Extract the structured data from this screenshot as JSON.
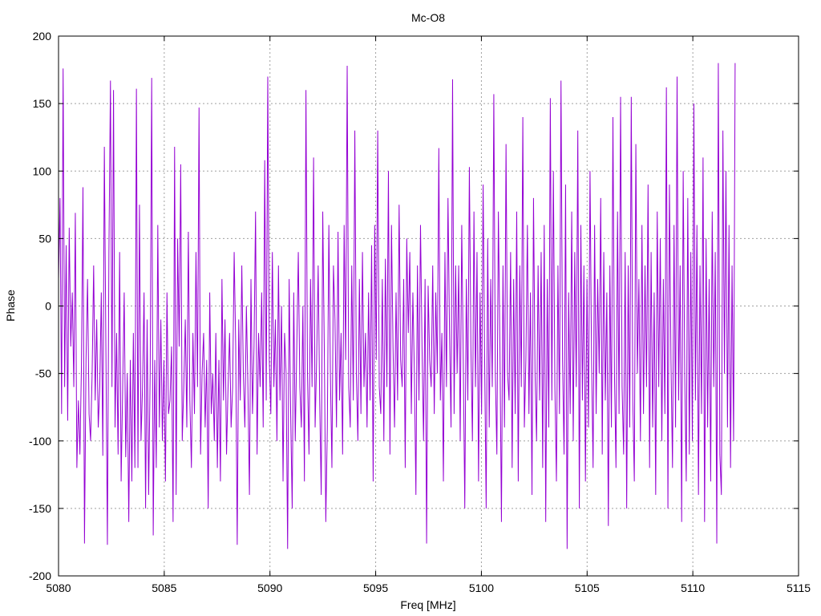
{
  "chart_data": {
    "type": "line",
    "title": "Mc-O8",
    "xlabel": "Freq [MHz]",
    "ylabel": "Phase",
    "xlim": [
      5080,
      5115
    ],
    "ylim": [
      -200,
      200
    ],
    "xticks": [
      5080,
      5085,
      5090,
      5095,
      5100,
      5105,
      5110,
      5115
    ],
    "yticks": [
      -200,
      -150,
      -100,
      -50,
      0,
      50,
      100,
      150,
      200
    ],
    "xtick_labels": [
      "5080",
      "5085",
      "5090",
      "5095",
      "5100",
      "5105",
      "5110",
      "5115"
    ],
    "ytick_labels": [
      "-200",
      "-150",
      "-100",
      "-50",
      "0",
      "50",
      "100",
      "150",
      "200"
    ],
    "grid": true,
    "legend": "none",
    "series": [
      {
        "color": "#9400d3",
        "x_start": 5080,
        "x_end": 5112,
        "y": [
          20,
          80,
          -80,
          176,
          -60,
          45,
          -85,
          58,
          -30,
          10,
          -60,
          69,
          -120,
          -70,
          -110,
          -45,
          88,
          -176,
          -40,
          20,
          -80,
          -100,
          -50,
          30,
          -70,
          -10,
          -90,
          -60,
          10,
          -111,
          118,
          -30,
          -177,
          40,
          167,
          -60,
          160,
          -90,
          -20,
          -110,
          40,
          -130,
          -60,
          10,
          -112,
          -50,
          -160,
          -40,
          -130,
          -20,
          -120,
          161,
          -120,
          75,
          -100,
          -60,
          10,
          -150,
          -10,
          -140,
          -50,
          169,
          -170,
          -40,
          -120,
          60,
          -90,
          -10,
          -100,
          -40,
          -130,
          10,
          -80,
          -70,
          -30,
          -160,
          118,
          -140,
          50,
          -30,
          105,
          -100,
          -60,
          -10,
          -90,
          55,
          -70,
          -120,
          -20,
          -80,
          40,
          -60,
          147,
          -110,
          -50,
          -20,
          -90,
          -40,
          -150,
          10,
          -80,
          -50,
          -100,
          -20,
          -120,
          -40,
          -130,
          20,
          -70,
          -10,
          -110,
          -60,
          -20,
          -90,
          -60,
          40,
          -30,
          -177,
          -10,
          -70,
          30,
          -50,
          -90,
          0,
          -60,
          -140,
          20,
          -80,
          -30,
          70,
          -110,
          -20,
          -60,
          10,
          -90,
          108,
          -70,
          170,
          -40,
          -80,
          40,
          -60,
          -10,
          -100,
          30,
          -70,
          0,
          -130,
          -20,
          -50,
          -180,
          20,
          -80,
          -150,
          10,
          -100,
          -30,
          40,
          -60,
          -90,
          0,
          -130,
          160,
          -50,
          -110,
          20,
          -60,
          110,
          -90,
          -40,
          30,
          -70,
          -140,
          70,
          -30,
          -160,
          -90,
          60,
          -50,
          -120,
          30,
          -10,
          -90,
          55,
          -70,
          -20,
          -110,
          60,
          -40,
          178,
          -60,
          -90,
          30,
          -70,
          130,
          -50,
          -100,
          20,
          -80,
          40,
          -60,
          -20,
          -90,
          10,
          -70,
          45,
          -130,
          60,
          -40,
          130,
          -60,
          -80,
          20,
          -100,
          35,
          -60,
          100,
          -110,
          60,
          -30,
          -90,
          10,
          -70,
          75,
          -40,
          -60,
          20,
          -120,
          50,
          -20,
          40,
          -80,
          10,
          -50,
          -140,
          30,
          -70,
          60,
          -30,
          -100,
          20,
          -176,
          15,
          -40,
          -60,
          30,
          -80,
          10,
          -50,
          117,
          -70,
          -20,
          -130,
          40,
          -60,
          80,
          -20,
          -90,
          168,
          -80,
          30,
          -50,
          30,
          -100,
          60,
          -40,
          -150,
          20,
          -70,
          103,
          -30,
          -100,
          70,
          -60,
          40,
          -130,
          10,
          -80,
          90,
          -40,
          -150,
          50,
          -90,
          20,
          -60,
          157,
          -50,
          -110,
          70,
          -30,
          -160,
          30,
          -90,
          120,
          -50,
          -70,
          40,
          -120,
          20,
          -80,
          70,
          -130,
          30,
          -60,
          140,
          -90,
          -40,
          60,
          -80,
          10,
          -140,
          80,
          -50,
          -100,
          30,
          -70,
          40,
          -120,
          60,
          -160,
          20,
          -90,
          154,
          -70,
          100,
          -60,
          -130,
          30,
          -80,
          167,
          -40,
          -110,
          90,
          -180,
          10,
          -80,
          70,
          -100,
          40,
          -60,
          130,
          -150,
          60,
          -70,
          30,
          -130,
          20,
          -90,
          100,
          -40,
          -120,
          60,
          -80,
          20,
          -50,
          80,
          -110,
          40,
          -70,
          10,
          -163,
          30,
          -90,
          140,
          -50,
          -120,
          70,
          -80,
          155,
          -60,
          -110,
          40,
          -150,
          30,
          -90,
          155,
          -70,
          -130,
          120,
          -50,
          20,
          -100,
          60,
          -80,
          30,
          -60,
          90,
          -120,
          40,
          -90,
          10,
          -140,
          70,
          -60,
          50,
          -100,
          20,
          -80,
          162,
          -150,
          90,
          -40,
          -120,
          60,
          -90,
          170,
          -70,
          30,
          -160,
          100,
          -50,
          -130,
          80,
          -110,
          40,
          -100,
          150,
          -70,
          60,
          -140,
          30,
          -80,
          110,
          -160,
          50,
          -90,
          20,
          -130,
          70,
          -60,
          40,
          -176,
          180,
          -110,
          -140,
          130,
          -50,
          100,
          -90,
          60,
          -120,
          30,
          -100,
          180
        ]
      }
    ]
  }
}
